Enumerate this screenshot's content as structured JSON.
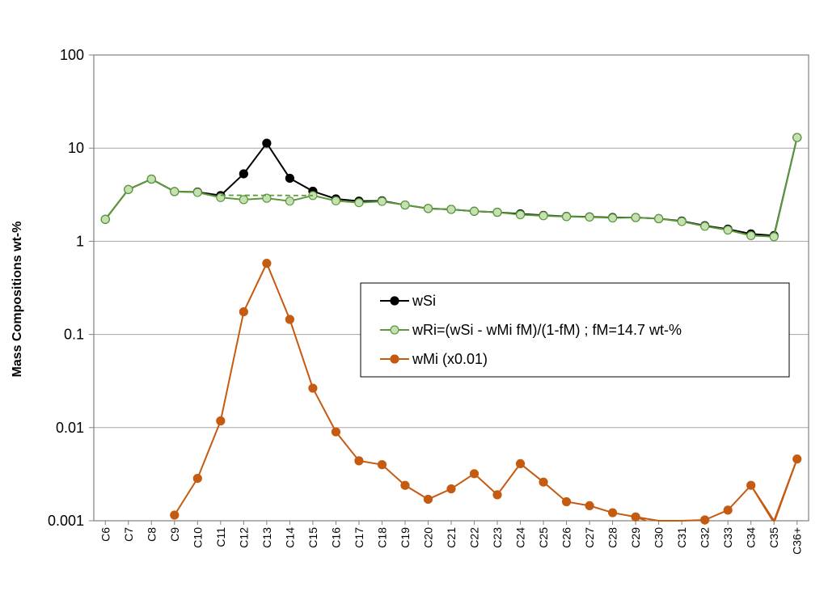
{
  "chart_data": {
    "type": "line",
    "title": "",
    "xlabel": "",
    "ylabel": "Mass Compositions wt-%",
    "y_scale": "log",
    "ylim": [
      0.001,
      100
    ],
    "yticks": [
      100,
      10,
      1,
      0.1,
      0.01,
      0.001
    ],
    "ytick_labels": [
      "100",
      "10",
      "1",
      "0.1",
      "0.01",
      "0.001"
    ],
    "grid": "horizontal",
    "legend_position": "center-right",
    "categories": [
      "C6",
      "C7",
      "C8",
      "C9",
      "C10",
      "C11",
      "C12",
      "C13",
      "C14",
      "C15",
      "C16",
      "C17",
      "C18",
      "C19",
      "C20",
      "C21",
      "C22",
      "C23",
      "C24",
      "C25",
      "C26",
      "C27",
      "C28",
      "C29",
      "C30",
      "C31",
      "C32",
      "C33",
      "C34",
      "C35",
      "C36+"
    ],
    "series": [
      {
        "name": "wSi",
        "color": "#000000",
        "marker_fill": "#000000",
        "values": [
          1.72,
          3.6,
          4.65,
          3.42,
          3.38,
          3.1,
          5.3,
          11.3,
          4.75,
          3.45,
          2.85,
          2.7,
          2.72,
          2.45,
          2.25,
          2.2,
          2.1,
          2.05,
          1.97,
          1.9,
          1.85,
          1.83,
          1.8,
          1.8,
          1.75,
          1.65,
          1.47,
          1.35,
          1.2,
          1.15,
          13.0
        ]
      },
      {
        "name": "wRi=(wSi - wMi fM)/(1-fM) ; fM=14.7 wt-%",
        "color": "#5a9a3a",
        "marker_fill": "#c6e0b4",
        "values": [
          1.72,
          3.6,
          4.65,
          3.42,
          3.35,
          2.95,
          2.8,
          2.9,
          2.7,
          3.1,
          2.72,
          2.6,
          2.68,
          2.45,
          2.25,
          2.2,
          2.1,
          2.05,
          1.93,
          1.88,
          1.84,
          1.82,
          1.78,
          1.8,
          1.75,
          1.63,
          1.45,
          1.32,
          1.15,
          1.12,
          13.0
        ]
      },
      {
        "name": "wMi (x0.01)",
        "color": "#c55a11",
        "marker_fill": "#c55a11",
        "values": [
          null,
          null,
          null,
          0.00115,
          0.00285,
          0.0118,
          0.175,
          0.58,
          0.145,
          0.0265,
          0.009,
          0.0044,
          0.004,
          0.0024,
          0.0017,
          0.0022,
          0.0032,
          0.0019,
          0.0041,
          0.0026,
          0.0016,
          0.00145,
          0.00122,
          0.0011,
          0.00089,
          0.00089,
          0.00102,
          0.0013,
          0.0024,
          0.00095,
          0.0046
        ]
      }
    ],
    "dashed_interpolation": {
      "color": "#5a9a3a",
      "from_category": "C11",
      "to_category": "C15",
      "values": [
        3.12,
        3.1
      ]
    }
  }
}
